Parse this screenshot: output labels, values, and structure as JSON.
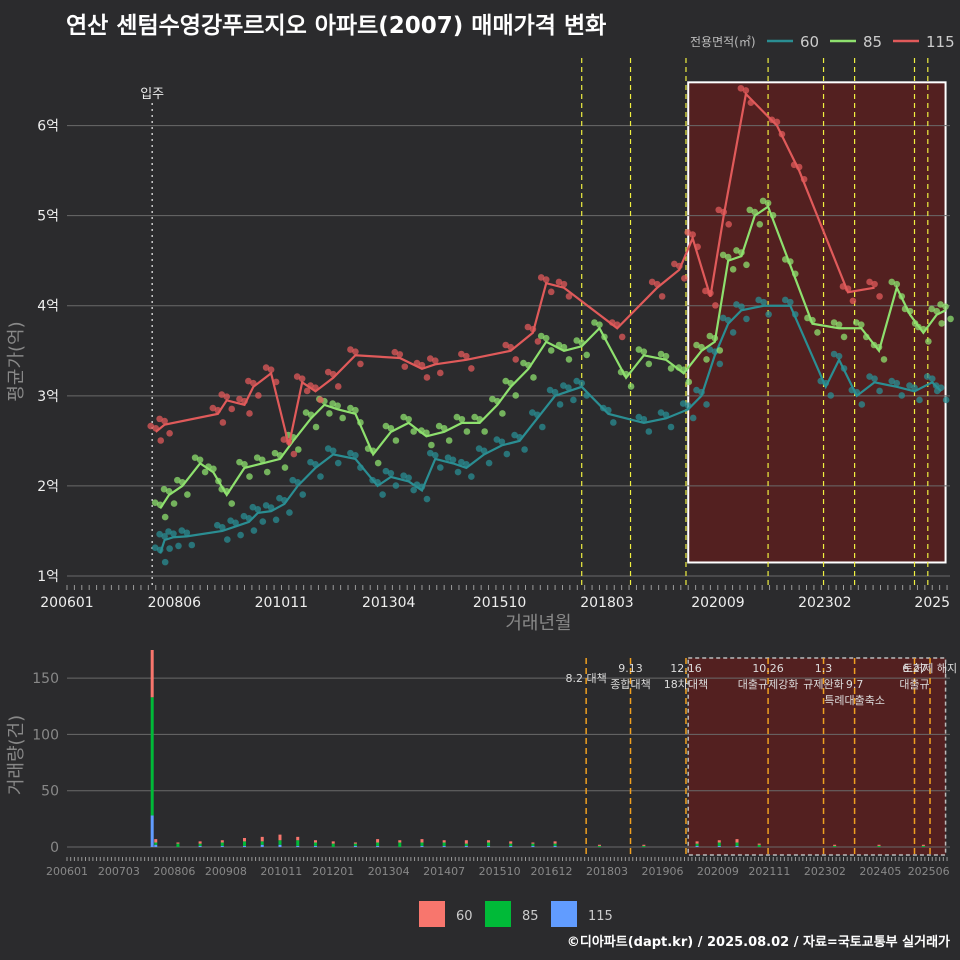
{
  "title": "연산 센텀수영강푸르지오 아파트(2007) 매매가격 변화",
  "footer": "©디아파트(dapt.kr) / 2025.08.02 / 자료=국토교통부 실거래가",
  "colors": {
    "bg": "#2b2b2d",
    "s60_line": "#2a8e93",
    "s85_line": "#8ee06e",
    "s115_line": "#e05a5a",
    "v60": "#f8766d",
    "v85": "#00ba38",
    "v115": "#619cff",
    "policy": "#f0f040",
    "policy2": "#f0a020"
  },
  "chart_data": [
    {
      "type": "line",
      "name": "price",
      "xlabel": "거래년월",
      "ylabel": "평균가(억)",
      "ylim": [
        0.9,
        6.75
      ],
      "xlim": [
        2006.0,
        2025.9
      ],
      "yticks": [
        1,
        2,
        3,
        4,
        5,
        6
      ],
      "ytick_labels": [
        "1억",
        "2억",
        "3억",
        "4억",
        "5억",
        "6억"
      ],
      "xtick_labels": [
        "200601",
        "200806",
        "201011",
        "201304",
        "201510",
        "201803",
        "202009",
        "202302",
        "2025"
      ],
      "xtick_values": [
        2006.0,
        2008.42,
        2010.83,
        2013.25,
        2015.75,
        2018.17,
        2020.67,
        2023.08,
        2025.5
      ],
      "legend": {
        "title": "전용면적(㎡)",
        "entries": [
          "60",
          "85",
          "115"
        ],
        "position": "top-right"
      },
      "annotations": [
        {
          "label": "입주",
          "x": 2007.92
        }
      ],
      "policy_lines": [
        2017.6,
        2018.7,
        2019.95,
        2021.8,
        2023.05,
        2023.75,
        2025.1,
        2025.4
      ],
      "highlight": {
        "x0": 2020.0,
        "x1": 2025.8,
        "y0": 1.15,
        "y1": 6.48
      },
      "series": [
        {
          "name": "60",
          "color": "#2a8e93",
          "x": [
            2008.1,
            2008.2,
            2008.4,
            2008.7,
            2009.5,
            2009.8,
            2010.1,
            2010.3,
            2010.6,
            2010.9,
            2011.2,
            2011.6,
            2012.0,
            2012.5,
            2013.0,
            2013.3,
            2013.7,
            2014.0,
            2014.3,
            2014.7,
            2015.0,
            2015.4,
            2015.8,
            2016.2,
            2016.6,
            2017.0,
            2017.3,
            2017.6,
            2018.2,
            2019.0,
            2019.5,
            2020.0,
            2020.3,
            2020.6,
            2020.9,
            2021.2,
            2021.7,
            2022.3,
            2023.1,
            2023.4,
            2023.8,
            2024.2,
            2024.7,
            2025.1,
            2025.5,
            2025.7
          ],
          "y": [
            1.25,
            1.4,
            1.43,
            1.44,
            1.5,
            1.55,
            1.6,
            1.7,
            1.72,
            1.8,
            2.0,
            2.2,
            2.35,
            2.3,
            2.0,
            2.1,
            2.05,
            1.95,
            2.3,
            2.25,
            2.2,
            2.35,
            2.45,
            2.5,
            2.75,
            3.0,
            3.05,
            3.1,
            2.8,
            2.7,
            2.75,
            2.85,
            3.0,
            3.45,
            3.8,
            3.95,
            4.0,
            4.0,
            3.1,
            3.4,
            3.0,
            3.15,
            3.1,
            3.05,
            3.15,
            3.05
          ]
        },
        {
          "name": "85",
          "color": "#8ee06e",
          "x": [
            2008.1,
            2008.3,
            2008.6,
            2009.0,
            2009.3,
            2009.6,
            2010.0,
            2010.4,
            2010.8,
            2011.1,
            2011.5,
            2011.8,
            2012.1,
            2012.5,
            2012.9,
            2013.3,
            2013.7,
            2014.1,
            2014.5,
            2014.9,
            2015.3,
            2015.7,
            2016.0,
            2016.4,
            2016.8,
            2017.2,
            2017.6,
            2018.0,
            2018.6,
            2019.0,
            2019.5,
            2019.9,
            2020.3,
            2020.6,
            2020.9,
            2021.2,
            2021.5,
            2021.8,
            2022.3,
            2022.8,
            2023.4,
            2023.9,
            2024.3,
            2024.7,
            2025.0,
            2025.3,
            2025.6,
            2025.8
          ],
          "y": [
            1.75,
            1.9,
            2.0,
            2.25,
            2.15,
            1.9,
            2.2,
            2.25,
            2.3,
            2.5,
            2.75,
            2.9,
            2.85,
            2.8,
            2.35,
            2.6,
            2.7,
            2.55,
            2.6,
            2.7,
            2.7,
            2.9,
            3.1,
            3.3,
            3.6,
            3.5,
            3.55,
            3.75,
            3.2,
            3.45,
            3.4,
            3.25,
            3.5,
            3.6,
            4.5,
            4.55,
            5.0,
            5.1,
            4.45,
            3.8,
            3.75,
            3.75,
            3.5,
            4.2,
            3.9,
            3.7,
            3.9,
            3.95
          ]
        },
        {
          "name": "115",
          "color": "#e05a5a",
          "x": [
            2008.0,
            2008.2,
            2009.4,
            2009.6,
            2010.0,
            2010.2,
            2010.6,
            2011.0,
            2011.3,
            2011.6,
            2012.0,
            2012.5,
            2013.5,
            2014.0,
            2014.3,
            2015.0,
            2016.0,
            2016.5,
            2016.8,
            2017.2,
            2018.4,
            2019.3,
            2019.8,
            2020.1,
            2020.5,
            2020.8,
            2021.3,
            2022.0,
            2022.5,
            2023.6,
            2024.2
          ],
          "y": [
            2.6,
            2.68,
            2.8,
            2.95,
            2.9,
            3.1,
            3.25,
            2.45,
            3.15,
            3.05,
            3.2,
            3.45,
            3.42,
            3.3,
            3.35,
            3.4,
            3.5,
            3.7,
            4.25,
            4.2,
            3.75,
            4.2,
            4.4,
            4.75,
            4.1,
            5.0,
            6.35,
            6.0,
            5.5,
            4.15,
            4.2
          ]
        }
      ]
    },
    {
      "type": "bar",
      "name": "volume",
      "xlabel": "",
      "ylabel": "거래량(건)",
      "ylim": [
        0,
        175
      ],
      "xlim": [
        2006.0,
        2025.9
      ],
      "yticks": [
        0,
        50,
        100,
        150
      ],
      "ytick_labels": [
        "0",
        "50",
        "100",
        "150"
      ],
      "xtick_labels": [
        "200601",
        "200703",
        "200806",
        "200908",
        "201011",
        "201201",
        "201304",
        "201407",
        "201510",
        "201612",
        "201803",
        "201906",
        "202009",
        "202111",
        "202302",
        "202405",
        "202506"
      ],
      "xtick_values": [
        2006.0,
        2007.17,
        2008.42,
        2009.58,
        2010.83,
        2012.0,
        2013.25,
        2014.5,
        2015.75,
        2016.92,
        2018.17,
        2019.42,
        2020.67,
        2021.83,
        2023.08,
        2024.33,
        2025.42
      ],
      "legend": {
        "entries": [
          "60",
          "85",
          "115"
        ],
        "position": "bottom"
      },
      "policies": [
        {
          "x": 2017.7,
          "lines": [
            "8.2 대책"
          ]
        },
        {
          "x": 2018.7,
          "lines": [
            "9.13",
            "종합대책"
          ]
        },
        {
          "x": 2019.95,
          "lines": [
            "12.16",
            "18차대책"
          ]
        },
        {
          "x": 2021.8,
          "lines": [
            "10.26",
            "대출규제강화"
          ]
        },
        {
          "x": 2023.05,
          "lines": [
            "1.3",
            "규제완화"
          ]
        },
        {
          "x": 2023.75,
          "lines": [
            "9.7",
            "특례대출축소"
          ]
        },
        {
          "x": 2025.1,
          "lines": [
            "6.27",
            "대출규"
          ]
        },
        {
          "x": 2025.45,
          "lines": [
            "토허제 해지"
          ]
        }
      ],
      "highlight": {
        "x0": 2020.0,
        "x1": 2025.8
      },
      "spike": {
        "x": 2007.92,
        "v60": 42,
        "v85": 105,
        "v115": 28
      },
      "bars": [
        {
          "x": 2008.0,
          "v60": 3,
          "v85": 2,
          "v115": 2
        },
        {
          "x": 2008.5,
          "v60": 1,
          "v85": 3,
          "v115": 0
        },
        {
          "x": 2009.0,
          "v60": 2,
          "v85": 2,
          "v115": 1
        },
        {
          "x": 2009.5,
          "v60": 2,
          "v85": 3,
          "v115": 1
        },
        {
          "x": 2010.0,
          "v60": 3,
          "v85": 4,
          "v115": 1
        },
        {
          "x": 2010.4,
          "v60": 4,
          "v85": 3,
          "v115": 2
        },
        {
          "x": 2010.8,
          "v60": 5,
          "v85": 4,
          "v115": 2
        },
        {
          "x": 2011.2,
          "v60": 3,
          "v85": 5,
          "v115": 1
        },
        {
          "x": 2011.6,
          "v60": 2,
          "v85": 3,
          "v115": 1
        },
        {
          "x": 2012.0,
          "v60": 2,
          "v85": 3,
          "v115": 0
        },
        {
          "x": 2012.5,
          "v60": 1,
          "v85": 2,
          "v115": 1
        },
        {
          "x": 2013.0,
          "v60": 3,
          "v85": 3,
          "v115": 1
        },
        {
          "x": 2013.5,
          "v60": 2,
          "v85": 4,
          "v115": 0
        },
        {
          "x": 2014.0,
          "v60": 3,
          "v85": 3,
          "v115": 1
        },
        {
          "x": 2014.5,
          "v60": 2,
          "v85": 3,
          "v115": 1
        },
        {
          "x": 2015.0,
          "v60": 3,
          "v85": 2,
          "v115": 1
        },
        {
          "x": 2015.5,
          "v60": 2,
          "v85": 3,
          "v115": 1
        },
        {
          "x": 2016.0,
          "v60": 2,
          "v85": 2,
          "v115": 1
        },
        {
          "x": 2016.5,
          "v60": 1,
          "v85": 2,
          "v115": 1
        },
        {
          "x": 2017.0,
          "v60": 2,
          "v85": 2,
          "v115": 1
        },
        {
          "x": 2018.0,
          "v60": 1,
          "v85": 1,
          "v115": 0
        },
        {
          "x": 2019.0,
          "v60": 1,
          "v85": 1,
          "v115": 0
        },
        {
          "x": 2020.2,
          "v60": 2,
          "v85": 2,
          "v115": 1
        },
        {
          "x": 2020.7,
          "v60": 2,
          "v85": 3,
          "v115": 1
        },
        {
          "x": 2021.1,
          "v60": 3,
          "v85": 3,
          "v115": 1
        },
        {
          "x": 2021.6,
          "v60": 1,
          "v85": 2,
          "v115": 0
        },
        {
          "x": 2023.3,
          "v60": 1,
          "v85": 1,
          "v115": 0
        },
        {
          "x": 2024.3,
          "v60": 1,
          "v85": 1,
          "v115": 0
        },
        {
          "x": 2025.3,
          "v60": 1,
          "v85": 1,
          "v115": 0
        }
      ]
    }
  ]
}
